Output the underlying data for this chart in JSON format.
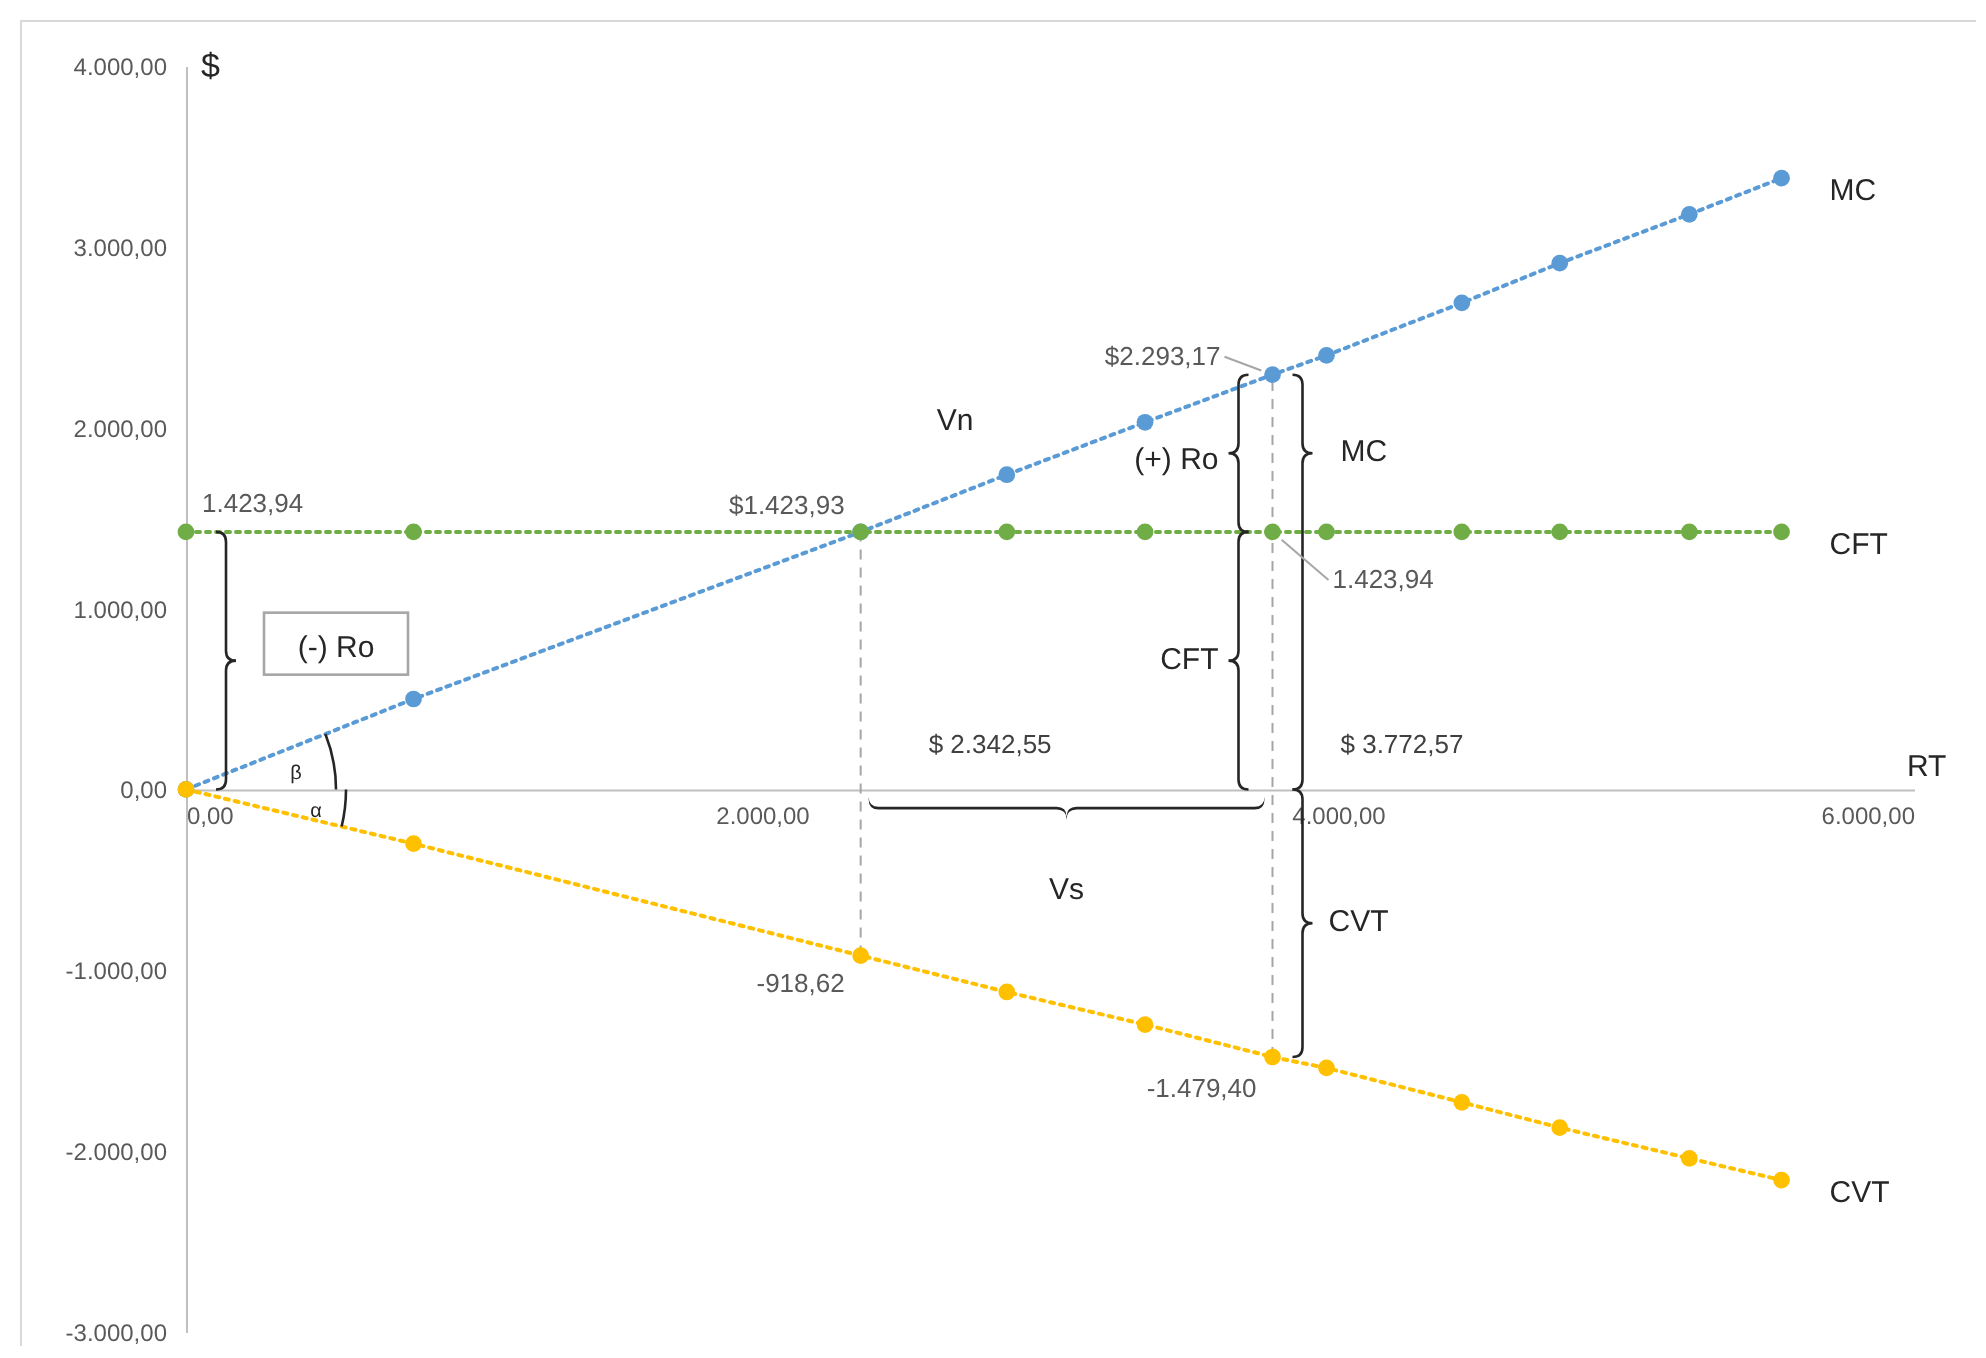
{
  "chart_data": {
    "type": "line",
    "xlabel": "RT",
    "ylabel": "$",
    "x": [
      0,
      790,
      2342.55,
      2850,
      3330,
      3772.57,
      3960,
      4430,
      4770,
      5220,
      5540
    ],
    "series": [
      {
        "name": "MC",
        "color": "#5b9bd5",
        "values": [
          0,
          500,
          1423.93,
          1740,
          2030,
          2293.17,
          2400,
          2690,
          2910,
          3180,
          3380
        ],
        "value_labels": [
          null,
          null,
          "$1.423,93",
          null,
          null,
          "$2.293,17",
          null,
          null,
          null,
          null,
          null
        ]
      },
      {
        "name": "CFT",
        "color": "#70ad47",
        "values": [
          1423.94,
          1423.94,
          1423.94,
          1423.94,
          1423.94,
          1423.94,
          1423.94,
          1423.94,
          1423.94,
          1423.94,
          1423.94
        ],
        "value_labels": [
          "1.423,94",
          null,
          null,
          null,
          null,
          "1.423,94",
          null,
          null,
          null,
          null,
          null
        ]
      },
      {
        "name": "CVT",
        "color": "#ffc000",
        "values": [
          0,
          -300,
          -918.62,
          -1120,
          -1300,
          -1479.4,
          -1540,
          -1730,
          -1870,
          -2040,
          -2160
        ],
        "value_labels": [
          null,
          null,
          "-918,62",
          null,
          null,
          "-1.479,40",
          null,
          null,
          null,
          null,
          null
        ]
      }
    ],
    "xlim": [
      0,
      6000
    ],
    "xticks": [
      {
        "value": 0,
        "label": "0,00"
      },
      {
        "value": 2000,
        "label": "2.000,00"
      },
      {
        "value": 4000,
        "label": "4.000,00"
      },
      {
        "value": 6000,
        "label": "6.000,00"
      }
    ],
    "ylim": [
      -3000,
      4000
    ],
    "yticks": [
      {
        "value": -3000,
        "label": "-3.000,00"
      },
      {
        "value": -2000,
        "label": "-2.000,00"
      },
      {
        "value": -1000,
        "label": "-1.000,00"
      },
      {
        "value": 0,
        "label": "0,00"
      },
      {
        "value": 1000,
        "label": "1.000,00"
      },
      {
        "value": 2000,
        "label": "2.000,00"
      },
      {
        "value": 3000,
        "label": "3.000,00"
      },
      {
        "value": 4000,
        "label": "4.000,00"
      }
    ],
    "ref_lines": [
      {
        "axis": "x",
        "value": 2342.55,
        "label": "$ 2.342,55",
        "line_style": "dashed",
        "color": "#a6a6a6"
      },
      {
        "axis": "x",
        "value": 3772.57,
        "label": "$ 3.772,57",
        "line_style": "dashed",
        "color": "#a6a6a6"
      }
    ],
    "annotations": [
      "Vn",
      "(+) Ro",
      "MC",
      "CFT",
      "(-) Ro",
      "β",
      "α",
      "Vs",
      "CVT"
    ],
    "marker": "circle",
    "line_style": "dotted",
    "grid": false
  }
}
